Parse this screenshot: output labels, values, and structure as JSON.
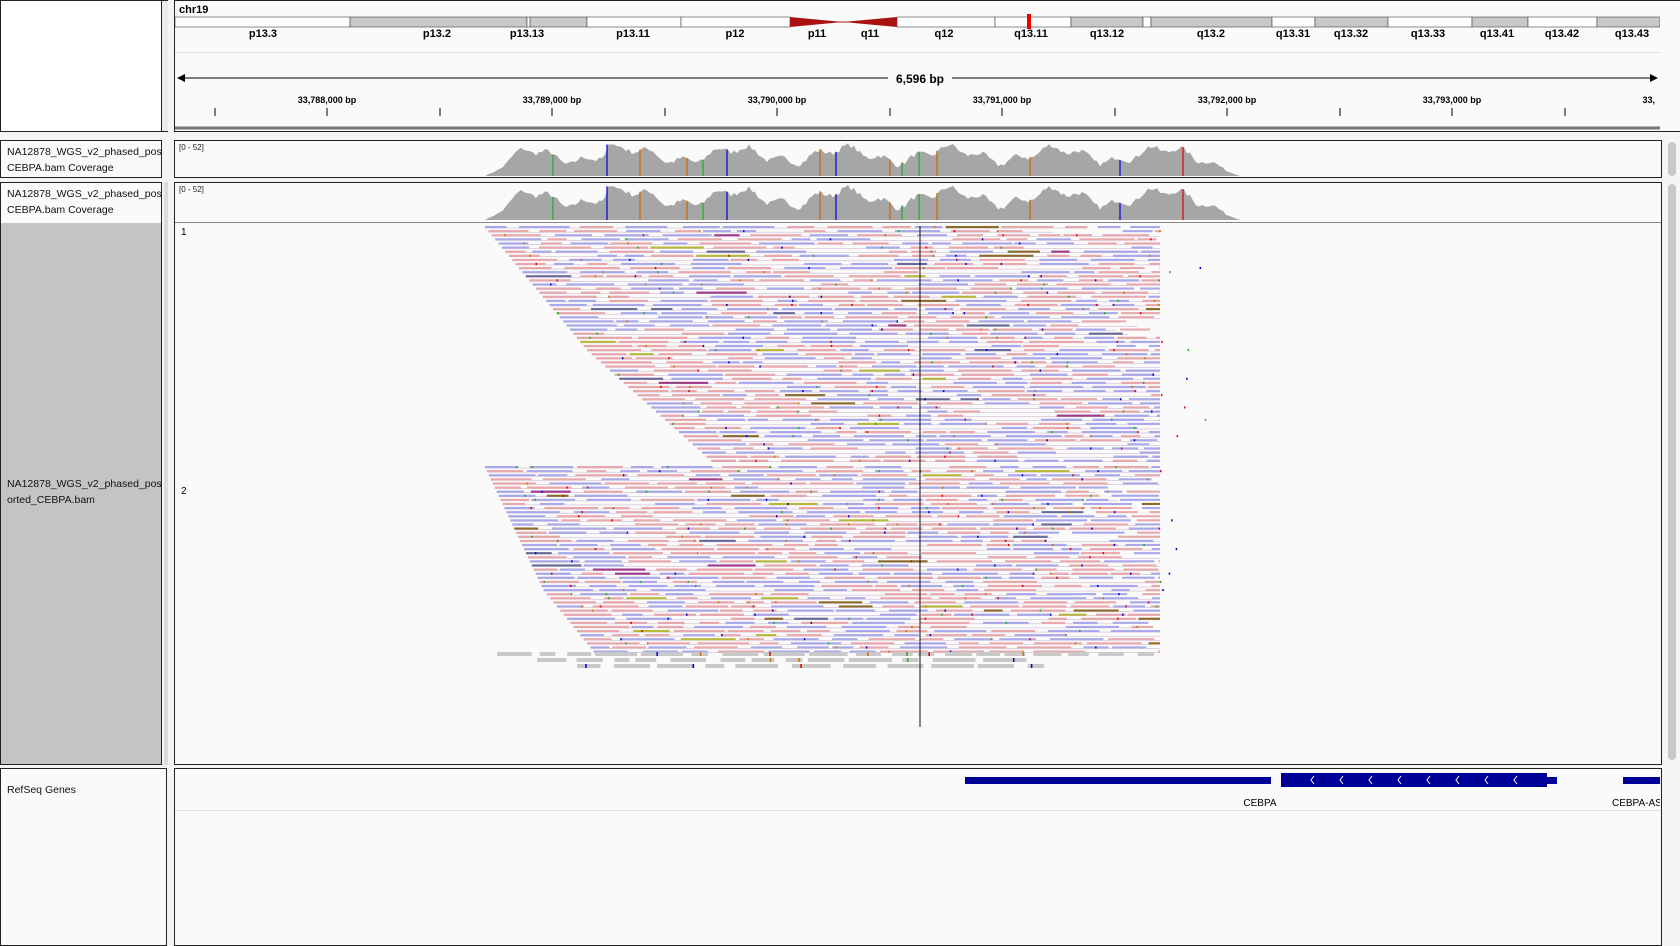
{
  "ideogram": {
    "chromosome": "chr19",
    "bands": [
      "p13.3",
      "p13.2",
      "p13.13",
      "p13.11",
      "p12",
      "p11",
      "q11",
      "q12",
      "q13.11",
      "q13.12",
      "q13.2",
      "q13.31",
      "q13.32",
      "q13.33",
      "q13.41",
      "q13.42",
      "q13.43"
    ]
  },
  "ruler": {
    "span_label": "6,596 bp",
    "ticks": [
      "33,788,000 bp",
      "33,789,000 bp",
      "33,790,000 bp",
      "33,791,000 bp",
      "33,792,000 bp",
      "33,793,000 bp",
      "33,"
    ]
  },
  "tracks": {
    "coverage1": {
      "name_line1": "NA12878_WGS_v2_phased_pos",
      "name_line2": "CEBPA.bam Coverage",
      "range": "[0 - 52]"
    },
    "coverage2": {
      "name_line1": "NA12878_WGS_v2_phased_pos",
      "name_line2": "CEBPA.bam Coverage",
      "range": "[0 - 52]"
    },
    "alignments": {
      "name_line1": "NA12878_WGS_v2_phased_pos",
      "name_line2": "orted_CEBPA.bam",
      "group1": "1",
      "group2": "2"
    },
    "genes": {
      "name": "RefSeq Genes",
      "gene1": "CEBPA",
      "gene2": "CEBPA-AS"
    }
  },
  "colors": {
    "forward_read": "#e8a8ac",
    "reverse_read": "#a8a8ea",
    "coverage": "#a6a6a6",
    "gene": "#000099",
    "centromere": "#aa1111",
    "panel_bg": "#fafafa",
    "selected_name_bg": "#c4c4c4"
  }
}
